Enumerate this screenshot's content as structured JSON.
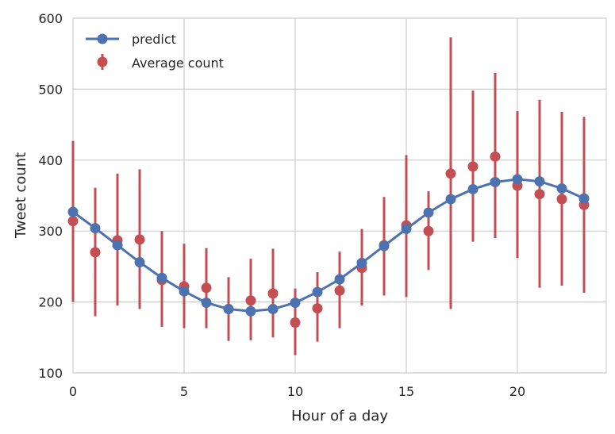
{
  "chart_data": {
    "type": "line",
    "xlabel": "Hour of a day",
    "ylabel": "Tweet count",
    "xlim": [
      0,
      24
    ],
    "ylim": [
      100,
      600
    ],
    "xticks": [
      0,
      5,
      10,
      15,
      20
    ],
    "yticks": [
      100,
      200,
      300,
      400,
      500,
      600
    ],
    "grid": true,
    "legend_position": "top-left",
    "series": [
      {
        "name": "predict",
        "kind": "line-marker",
        "color": "#4C72B0",
        "x": [
          0,
          1,
          2,
          3,
          4,
          5,
          6,
          7,
          8,
          9,
          10,
          11,
          12,
          13,
          14,
          15,
          16,
          17,
          18,
          19,
          20,
          21,
          22,
          23
        ],
        "y": [
          327,
          304,
          280,
          256,
          234,
          215,
          199,
          190,
          187,
          190,
          199,
          214,
          232,
          255,
          279,
          303,
          326,
          345,
          359,
          369,
          373,
          370,
          360,
          346
        ]
      },
      {
        "name": "Average count",
        "kind": "errorbar",
        "color": "#C44E52",
        "x": [
          0,
          1,
          2,
          3,
          4,
          5,
          6,
          7,
          8,
          9,
          10,
          11,
          12,
          13,
          14,
          15,
          16,
          17,
          18,
          19,
          20,
          21,
          22,
          23
        ],
        "y": [
          314,
          270,
          287,
          288,
          231,
          222,
          220,
          190,
          202,
          212,
          171,
          191,
          216,
          248,
          280,
          308,
          300,
          381,
          391,
          405,
          364,
          352,
          345,
          337
        ],
        "err_low": [
          200,
          180,
          195,
          190,
          165,
          163,
          163,
          145,
          146,
          150,
          125,
          144,
          163,
          195,
          209,
          207,
          245,
          190,
          285,
          290,
          262,
          220,
          223,
          213
        ],
        "err_high": [
          427,
          361,
          381,
          387,
          300,
          282,
          276,
          235,
          261,
          275,
          219,
          242,
          271,
          303,
          348,
          407,
          356,
          573,
          498,
          523,
          469,
          485,
          468,
          461
        ]
      }
    ]
  }
}
